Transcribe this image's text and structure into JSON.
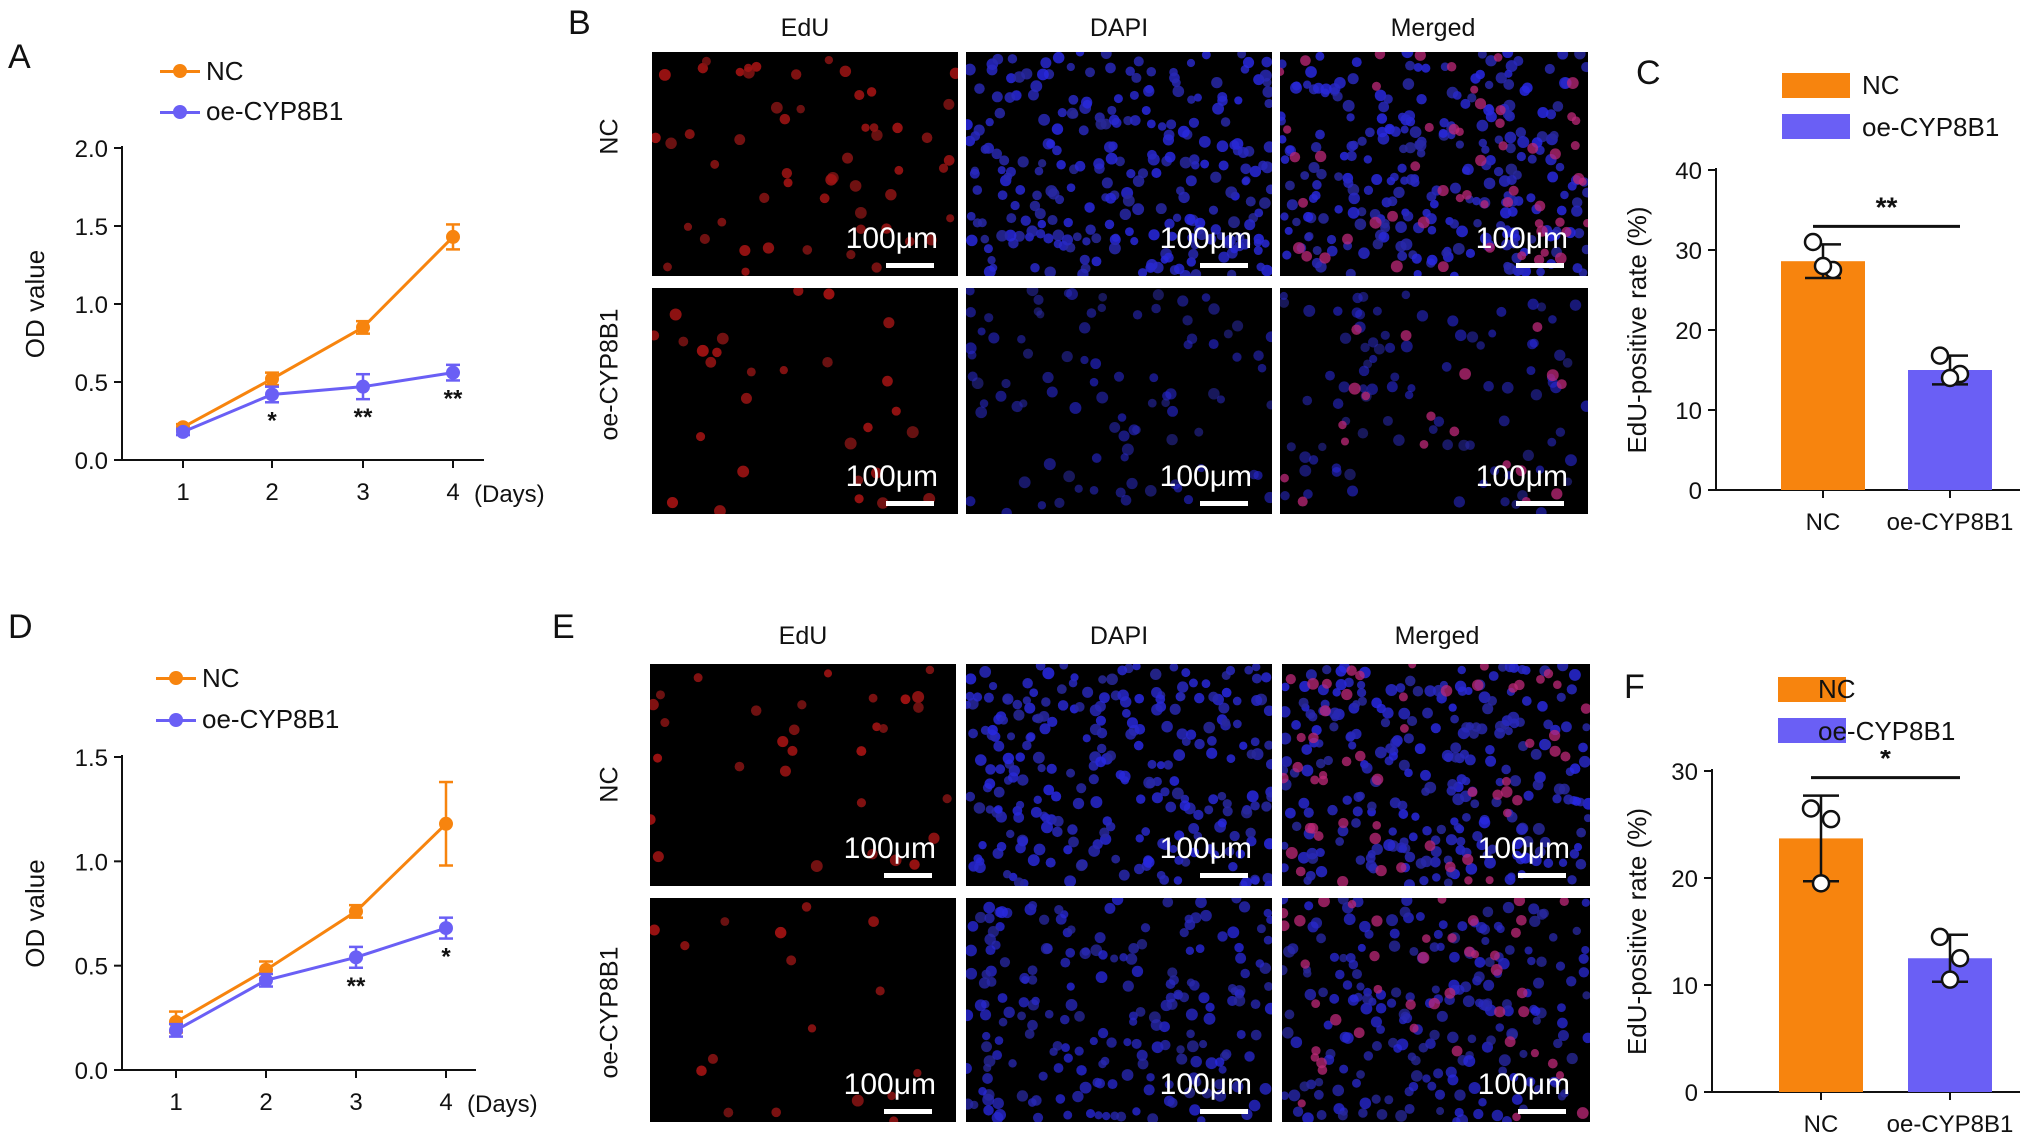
{
  "colors": {
    "nc": "#F7840E",
    "oe": "#6A5FF5"
  },
  "panels": {
    "A": "A",
    "B": "B",
    "C": "C",
    "D": "D",
    "E": "E",
    "F": "F"
  },
  "line_legend": {
    "nc": "NC",
    "oe": "oe-CYP8B1"
  },
  "bar_legend": {
    "nc": "NC",
    "oe": "oe-CYP8B1"
  },
  "microscopy": {
    "columns": [
      "EdU",
      "DAPI",
      "Merged"
    ],
    "rows": [
      "NC",
      "oe-CYP8B1"
    ],
    "scale_label": "100μm"
  },
  "chart_data": [
    {
      "panel": "A",
      "type": "line",
      "x": [
        1,
        2,
        3,
        4
      ],
      "x_tick_labels": [
        "1",
        "2",
        "3",
        "4"
      ],
      "x_unit_label": "(Days)",
      "xlabel": "",
      "ylabel": "OD value",
      "ylim": [
        0.0,
        2.0
      ],
      "y_ticks": [
        "0.0",
        "0.5",
        "1.0",
        "1.5",
        "2.0"
      ],
      "y_tick_values": [
        0,
        0.5,
        1.0,
        1.5,
        2.0
      ],
      "series": [
        {
          "name": "NC",
          "values": [
            0.21,
            0.52,
            0.85,
            1.43
          ],
          "errors": [
            0.02,
            0.04,
            0.04,
            0.08
          ]
        },
        {
          "name": "oe-CYP8B1",
          "values": [
            0.18,
            0.42,
            0.47,
            0.56
          ],
          "errors": [
            0.02,
            0.05,
            0.08,
            0.05
          ]
        }
      ],
      "significance": [
        "",
        "*",
        "**",
        "**"
      ],
      "legend": "top-left"
    },
    {
      "panel": "C",
      "type": "bar",
      "categories": [
        "NC",
        "oe-CYP8B1"
      ],
      "values": [
        28.6,
        15.0
      ],
      "errors": [
        2.1,
        1.8
      ],
      "points": [
        [
          31.0,
          27.5,
          28.0
        ],
        [
          16.8,
          14.5,
          14.0
        ]
      ],
      "ylabel": "EdU-positive rate (%)",
      "ylim": [
        0,
        40
      ],
      "y_ticks": [
        "0",
        "10",
        "20",
        "30",
        "40"
      ],
      "y_tick_values": [
        0,
        10,
        20,
        30,
        40
      ],
      "significance": "**",
      "legend": "top"
    },
    {
      "panel": "D",
      "type": "line",
      "x": [
        1,
        2,
        3,
        4
      ],
      "x_tick_labels": [
        "1",
        "2",
        "3",
        "4"
      ],
      "x_unit_label": "(Days)",
      "xlabel": "",
      "ylabel": "OD value",
      "ylim": [
        0.0,
        1.5
      ],
      "y_ticks": [
        "0.0",
        "0.5",
        "1.0",
        "1.5"
      ],
      "y_tick_values": [
        0,
        0.5,
        1.0,
        1.5
      ],
      "series": [
        {
          "name": "NC",
          "values": [
            0.23,
            0.48,
            0.76,
            1.18
          ],
          "errors": [
            0.05,
            0.04,
            0.03,
            0.2
          ]
        },
        {
          "name": "oe-CYP8B1",
          "values": [
            0.19,
            0.43,
            0.54,
            0.68
          ],
          "errors": [
            0.03,
            0.03,
            0.05,
            0.05
          ]
        }
      ],
      "significance": [
        "",
        "",
        "**",
        "*"
      ],
      "legend": "top-left"
    },
    {
      "panel": "F",
      "type": "bar",
      "categories": [
        "NC",
        "oe-CYP8B1"
      ],
      "values": [
        23.7,
        12.5
      ],
      "errors": [
        4.0,
        2.2
      ],
      "points": [
        [
          26.5,
          25.5,
          19.5
        ],
        [
          14.5,
          12.5,
          10.5
        ]
      ],
      "ylabel": "EdU-positive rate (%)",
      "ylim": [
        0,
        30
      ],
      "y_ticks": [
        "0",
        "10",
        "20",
        "30"
      ],
      "y_tick_values": [
        0,
        10,
        20,
        30
      ],
      "significance": "*",
      "legend": "top"
    }
  ]
}
